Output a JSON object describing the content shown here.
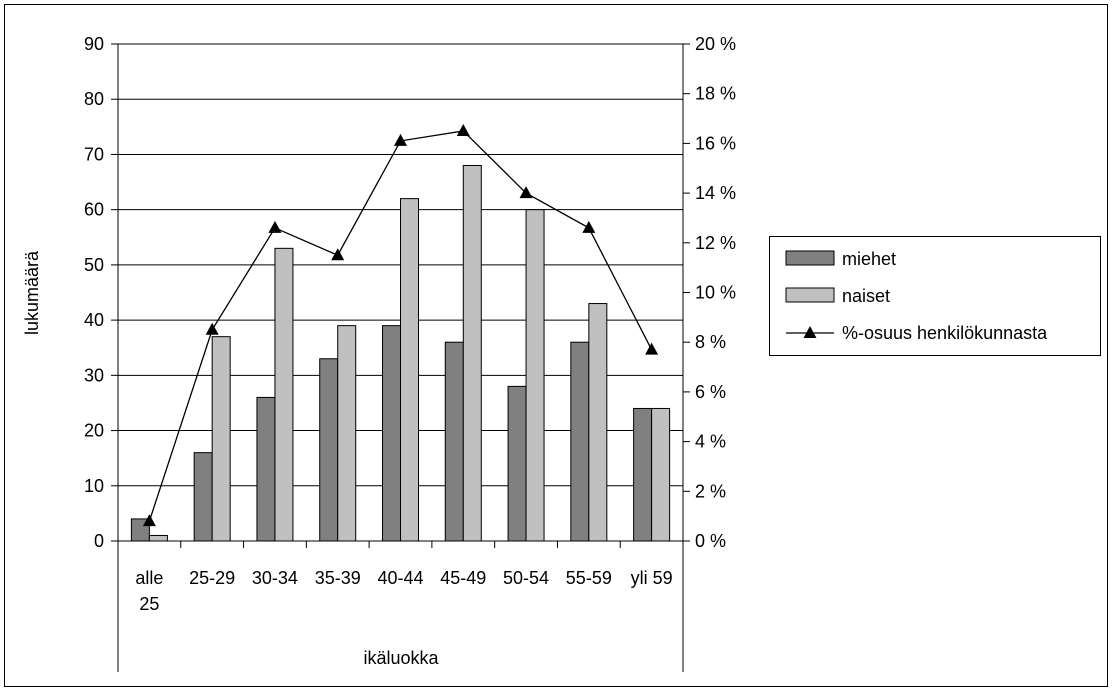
{
  "chart_data": {
    "type": "bar",
    "categories": [
      [
        "alle",
        "25"
      ],
      [
        "25-29"
      ],
      [
        "30-34"
      ],
      [
        "35-39"
      ],
      [
        "40-44"
      ],
      [
        "45-49"
      ],
      [
        "50-54"
      ],
      [
        "55-59"
      ],
      [
        "yli 59"
      ]
    ],
    "series": [
      {
        "name": "miehet",
        "type": "bar",
        "axis": "left",
        "color": "#808080",
        "values": [
          4,
          16,
          26,
          33,
          39,
          36,
          28,
          36,
          24
        ]
      },
      {
        "name": "naiset",
        "type": "bar",
        "axis": "left",
        "color": "#c0c0c0",
        "values": [
          1,
          37,
          53,
          39,
          62,
          68,
          60,
          43,
          24
        ]
      },
      {
        "name": "%-osuus henkilökunnasta",
        "type": "line",
        "axis": "right",
        "color": "#000000",
        "values": [
          0.8,
          8.5,
          12.6,
          11.5,
          16.1,
          16.5,
          14.0,
          12.6,
          7.7
        ]
      }
    ],
    "xlabel": "ikäluokka",
    "ylabel": "lukumäärä",
    "ylim": [
      0,
      90
    ],
    "yticks": [
      0,
      10,
      20,
      30,
      40,
      50,
      60,
      70,
      80,
      90
    ],
    "y2lim": [
      0,
      20
    ],
    "y2ticks": [
      "0 %",
      "2 %",
      "4 %",
      "6 %",
      "8 %",
      "10 %",
      "12 %",
      "14 %",
      "16 %",
      "18 %",
      "20 %"
    ],
    "grid": true,
    "legend_position": "right"
  }
}
